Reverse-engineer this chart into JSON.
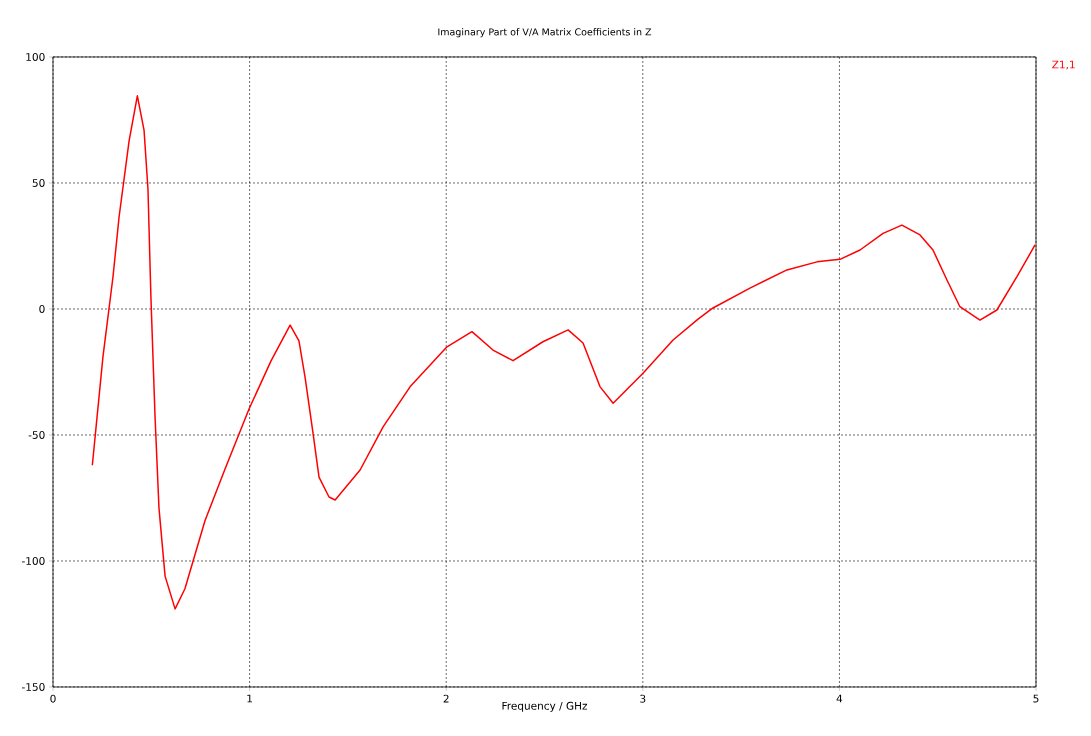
{
  "chart_data": {
    "type": "line",
    "title": "Imaginary Part of V/A Matrix Coefficients in Z",
    "xlabel": "Frequency / GHz",
    "x": [
      0.2,
      0.254,
      0.305,
      0.336,
      0.387,
      0.429,
      0.463,
      0.483,
      0.498,
      0.519,
      0.539,
      0.57,
      0.621,
      0.671,
      0.773,
      0.875,
      0.997,
      1.109,
      1.206,
      1.251,
      1.282,
      1.322,
      1.353,
      1.404,
      1.435,
      1.562,
      1.679,
      1.816,
      2.004,
      2.131,
      2.238,
      2.34,
      2.492,
      2.62,
      2.696,
      2.782,
      2.849,
      3.001,
      3.154,
      3.281,
      3.357,
      3.545,
      3.733,
      3.886,
      4.003,
      4.105,
      4.222,
      4.318,
      4.41,
      4.476,
      4.547,
      4.613,
      4.715,
      4.801,
      4.903,
      4.995
    ],
    "series": [
      {
        "name": "Z1,1",
        "color": "#ff0000",
        "values": [
          -62,
          -19,
          12.7,
          36.5,
          66.7,
          84.6,
          71,
          47.6,
          4.7,
          -42.8,
          -79,
          -106,
          -119,
          -111,
          -84,
          -63.5,
          -39.7,
          -20.6,
          -6.4,
          -12.7,
          -27,
          -49,
          -66.7,
          -74.6,
          -75.8,
          -63.9,
          -46.8,
          -30.9,
          -15,
          -9,
          -16.3,
          -20.5,
          -13,
          -8.3,
          -13.5,
          -30.8,
          -37.4,
          -25.5,
          -12.3,
          -4,
          0.4,
          8.3,
          15.5,
          18.7,
          19.7,
          23.4,
          30,
          33.3,
          29.4,
          23.4,
          11.5,
          0.9,
          -4.4,
          -0.4,
          12.8,
          25.4
        ]
      }
    ],
    "xlim": [
      0,
      5
    ],
    "ylim": [
      -150,
      100
    ],
    "xticks": [
      0,
      1,
      2,
      3,
      4,
      5
    ],
    "yticks": [
      -150,
      -100,
      -50,
      0,
      50,
      100
    ],
    "grid": true,
    "legend": "top right",
    "marker": "none",
    "line_style": "solid"
  }
}
